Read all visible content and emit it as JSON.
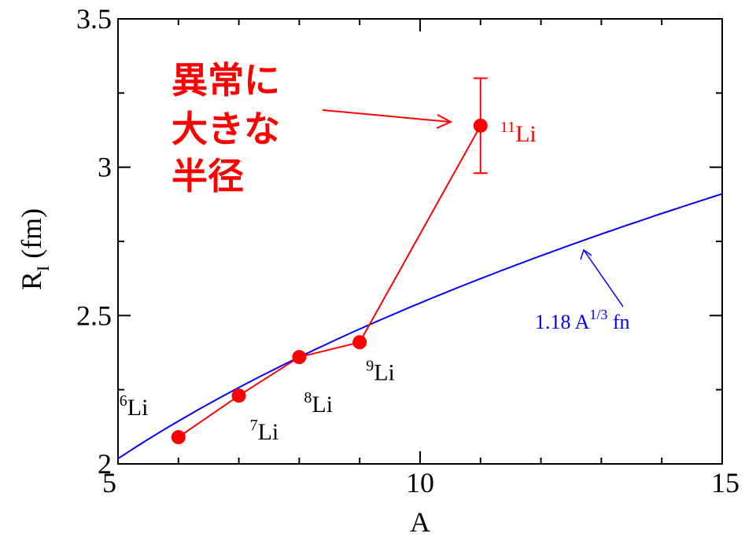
{
  "chart_data": {
    "type": "line",
    "xlabel": "A",
    "ylabel": "R",
    "ylabel_sub": "I",
    "ylabel_unit": "(fm)",
    "xlim": [
      5,
      15
    ],
    "ylim": [
      2,
      3.5
    ],
    "x_ticks": [
      5,
      10,
      15
    ],
    "x_tick_labels": [
      "5",
      "10",
      "15"
    ],
    "y_ticks": [
      2,
      2.5,
      3,
      3.5
    ],
    "y_tick_labels": [
      "2",
      "2.5",
      "3",
      "3.5"
    ],
    "grid": false,
    "colors": {
      "data": "#ff0000",
      "fit": "#0000ff",
      "axis": "#000000"
    },
    "series": [
      {
        "type": "line-with-markers",
        "points": [
          {
            "x": 6,
            "y": 2.09,
            "iso_mass": "6",
            "iso_elem": "Li"
          },
          {
            "x": 7,
            "y": 2.23,
            "iso_mass": "7",
            "iso_elem": "Li"
          },
          {
            "x": 8,
            "y": 2.36,
            "iso_mass": "8",
            "iso_elem": "Li"
          },
          {
            "x": 9,
            "y": 2.41,
            "iso_mass": "9",
            "iso_elem": "Li"
          },
          {
            "x": 11,
            "y": 3.14,
            "err_low": 0.16,
            "err_high": 0.16,
            "iso_mass": "11",
            "iso_elem": "Li"
          }
        ]
      },
      {
        "type": "curve",
        "formula": "1.18 * A^(1/3)",
        "coefficient": 1.18,
        "exponent": 0.3333333333
      }
    ],
    "fit_label": {
      "coef": "1.18 A",
      "exp": "1/3",
      "unit": " fn"
    },
    "annotation": {
      "lines": [
        "異常に",
        "大きな",
        "半径"
      ]
    }
  }
}
